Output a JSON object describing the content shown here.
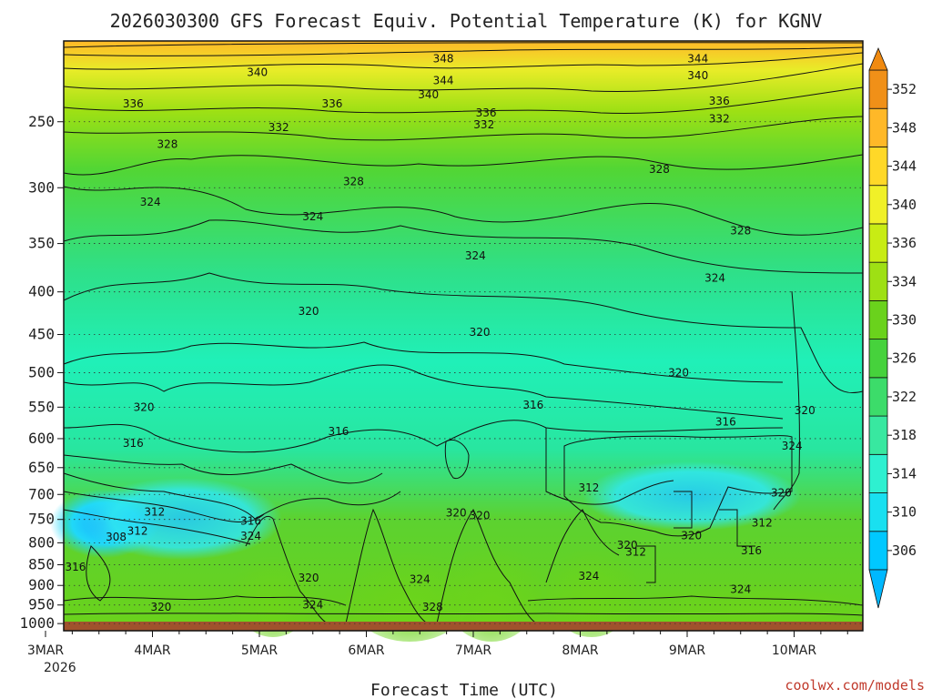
{
  "chart_data": {
    "type": "heatmap",
    "title": "2026030300 GFS Forecast Equiv. Potential Temperature (K) for KGNV",
    "xlabel": "Forecast Time (UTC)",
    "ylabel": "",
    "x_ticks": [
      "3MAR",
      "4MAR",
      "5MAR",
      "6MAR",
      "7MAR",
      "8MAR",
      "9MAR",
      "10MAR"
    ],
    "x_sub": "2026",
    "y_ticks": [
      250,
      300,
      350,
      400,
      450,
      500,
      550,
      600,
      650,
      700,
      750,
      800,
      850,
      900,
      950,
      1000
    ],
    "ylim": [
      1020,
      200
    ],
    "colorbar": {
      "ticks": [
        306,
        310,
        314,
        318,
        322,
        326,
        330,
        334,
        336,
        340,
        344,
        348,
        352
      ],
      "colors": [
        "#00c8ff",
        "#19e0f0",
        "#2ef0d0",
        "#38e8a0",
        "#3cdc6a",
        "#46d23c",
        "#6ad21c",
        "#9ee014",
        "#c8ec14",
        "#f0f028",
        "#ffd828",
        "#ffb828",
        "#f09018"
      ]
    },
    "contour_labels": [
      {
        "v": "348",
        "x": 3.72,
        "p": 210
      },
      {
        "v": "344",
        "x": 6.1,
        "p": 210
      },
      {
        "v": "344",
        "x": 3.72,
        "p": 223
      },
      {
        "v": "340",
        "x": 1.98,
        "p": 218
      },
      {
        "v": "340",
        "x": 3.58,
        "p": 232
      },
      {
        "v": "340",
        "x": 6.1,
        "p": 220
      },
      {
        "v": "336",
        "x": 0.82,
        "p": 238
      },
      {
        "v": "336",
        "x": 2.68,
        "p": 238
      },
      {
        "v": "336",
        "x": 4.12,
        "p": 244
      },
      {
        "v": "336",
        "x": 6.3,
        "p": 236
      },
      {
        "v": "332",
        "x": 2.18,
        "p": 254
      },
      {
        "v": "332",
        "x": 4.1,
        "p": 252
      },
      {
        "v": "332",
        "x": 6.3,
        "p": 248
      },
      {
        "v": "328",
        "x": 1.14,
        "p": 266
      },
      {
        "v": "328",
        "x": 2.88,
        "p": 295
      },
      {
        "v": "328",
        "x": 5.74,
        "p": 285
      },
      {
        "v": "328",
        "x": 6.5,
        "p": 338
      },
      {
        "v": "324",
        "x": 0.98,
        "p": 312
      },
      {
        "v": "324",
        "x": 2.5,
        "p": 325
      },
      {
        "v": "324",
        "x": 4.02,
        "p": 362
      },
      {
        "v": "324",
        "x": 6.26,
        "p": 385
      },
      {
        "v": "320",
        "x": 2.46,
        "p": 422
      },
      {
        "v": "320",
        "x": 4.06,
        "p": 447
      },
      {
        "v": "320",
        "x": 5.92,
        "p": 500
      },
      {
        "v": "320",
        "x": 0.92,
        "p": 550
      },
      {
        "v": "320",
        "x": 7.1,
        "p": 555
      },
      {
        "v": "316",
        "x": 2.74,
        "p": 588
      },
      {
        "v": "316",
        "x": 4.56,
        "p": 547
      },
      {
        "v": "316",
        "x": 6.36,
        "p": 573
      },
      {
        "v": "316",
        "x": 0.82,
        "p": 608
      },
      {
        "v": "312",
        "x": 1.02,
        "p": 735
      },
      {
        "v": "312",
        "x": 0.86,
        "p": 775
      },
      {
        "v": "312",
        "x": 5.08,
        "p": 687
      },
      {
        "v": "312",
        "x": 6.7,
        "p": 757
      },
      {
        "v": "312",
        "x": 5.52,
        "p": 821
      },
      {
        "v": "308",
        "x": 0.66,
        "p": 787
      },
      {
        "v": "316",
        "x": 0.28,
        "p": 855
      },
      {
        "v": "316",
        "x": 1.92,
        "p": 753
      },
      {
        "v": "316",
        "x": 6.6,
        "p": 818
      },
      {
        "v": "324",
        "x": 1.92,
        "p": 785
      },
      {
        "v": "324",
        "x": 6.98,
        "p": 612
      },
      {
        "v": "324",
        "x": 5.08,
        "p": 877
      },
      {
        "v": "324",
        "x": 3.5,
        "p": 885
      },
      {
        "v": "324",
        "x": 2.5,
        "p": 950
      },
      {
        "v": "324",
        "x": 6.5,
        "p": 910
      },
      {
        "v": "320",
        "x": 3.84,
        "p": 737
      },
      {
        "v": "320",
        "x": 4.06,
        "p": 742
      },
      {
        "v": "320",
        "x": 2.46,
        "p": 882
      },
      {
        "v": "320",
        "x": 1.08,
        "p": 955
      },
      {
        "v": "320",
        "x": 5.44,
        "p": 805
      },
      {
        "v": "320",
        "x": 6.04,
        "p": 784
      },
      {
        "v": "320",
        "x": 6.88,
        "p": 697
      },
      {
        "v": "328",
        "x": 3.62,
        "p": 955
      }
    ],
    "credit": "coolwx.com/models"
  }
}
